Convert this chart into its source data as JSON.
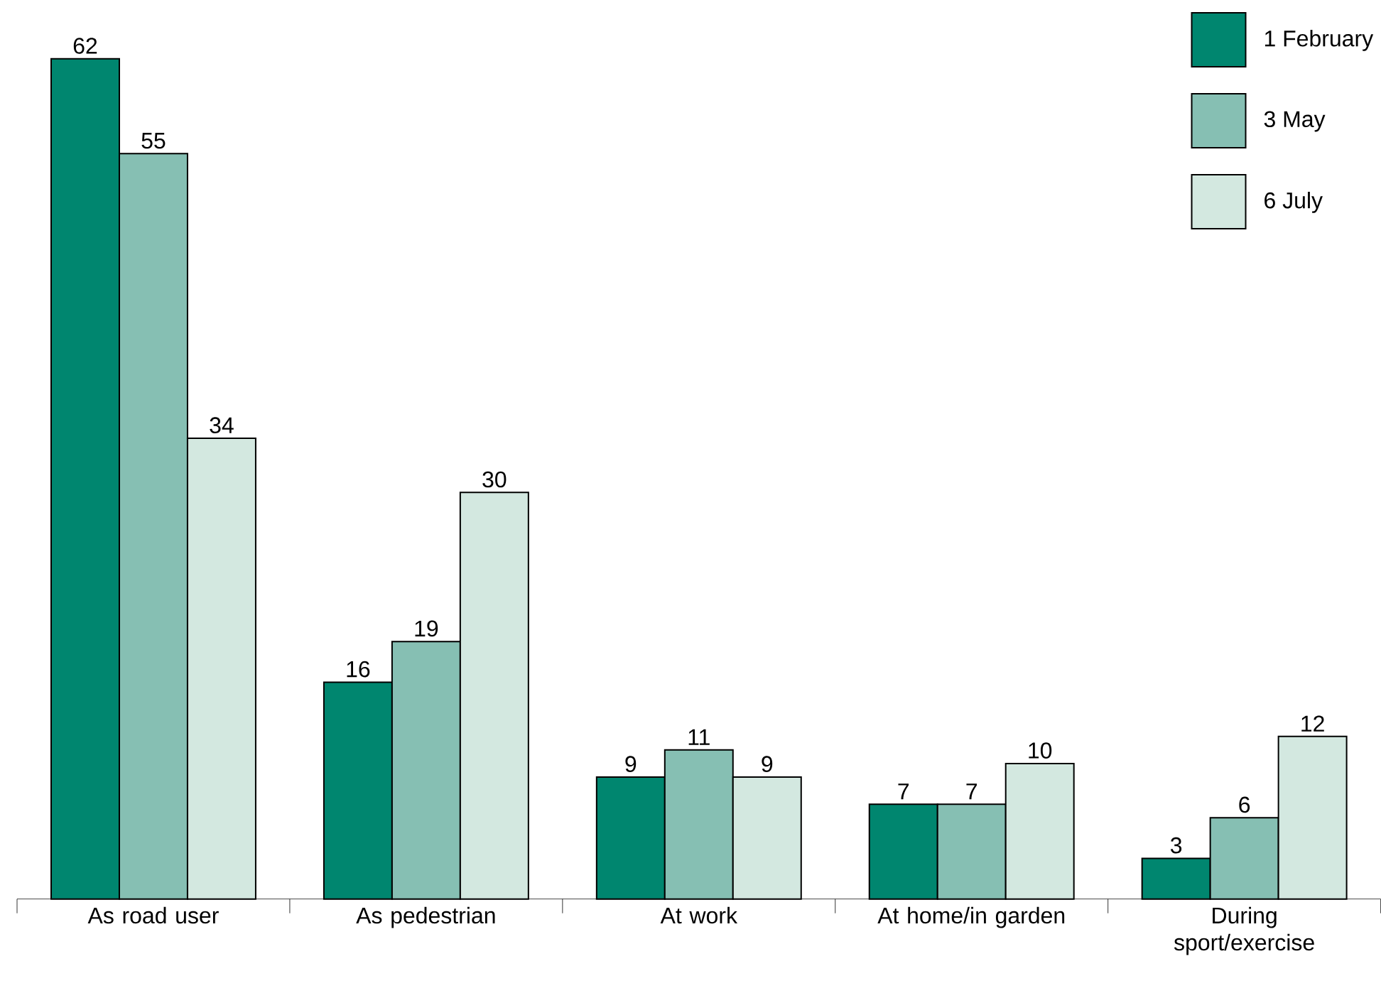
{
  "chart_data": {
    "type": "bar",
    "categories": [
      "As road user",
      "As pedestrian",
      "At work",
      "At home/in garden",
      "During sport/exercise"
    ],
    "series": [
      {
        "name": "1 February",
        "color": "#00866f",
        "values": [
          62,
          16,
          9,
          7,
          3
        ]
      },
      {
        "name": "3 May",
        "color": "#86bfb3",
        "values": [
          55,
          19,
          11,
          7,
          6
        ]
      },
      {
        "name": "6 July",
        "color": "#d3e8e0",
        "values": [
          34,
          30,
          9,
          10,
          12
        ]
      }
    ],
    "data_labels": true,
    "legend": "top right"
  }
}
